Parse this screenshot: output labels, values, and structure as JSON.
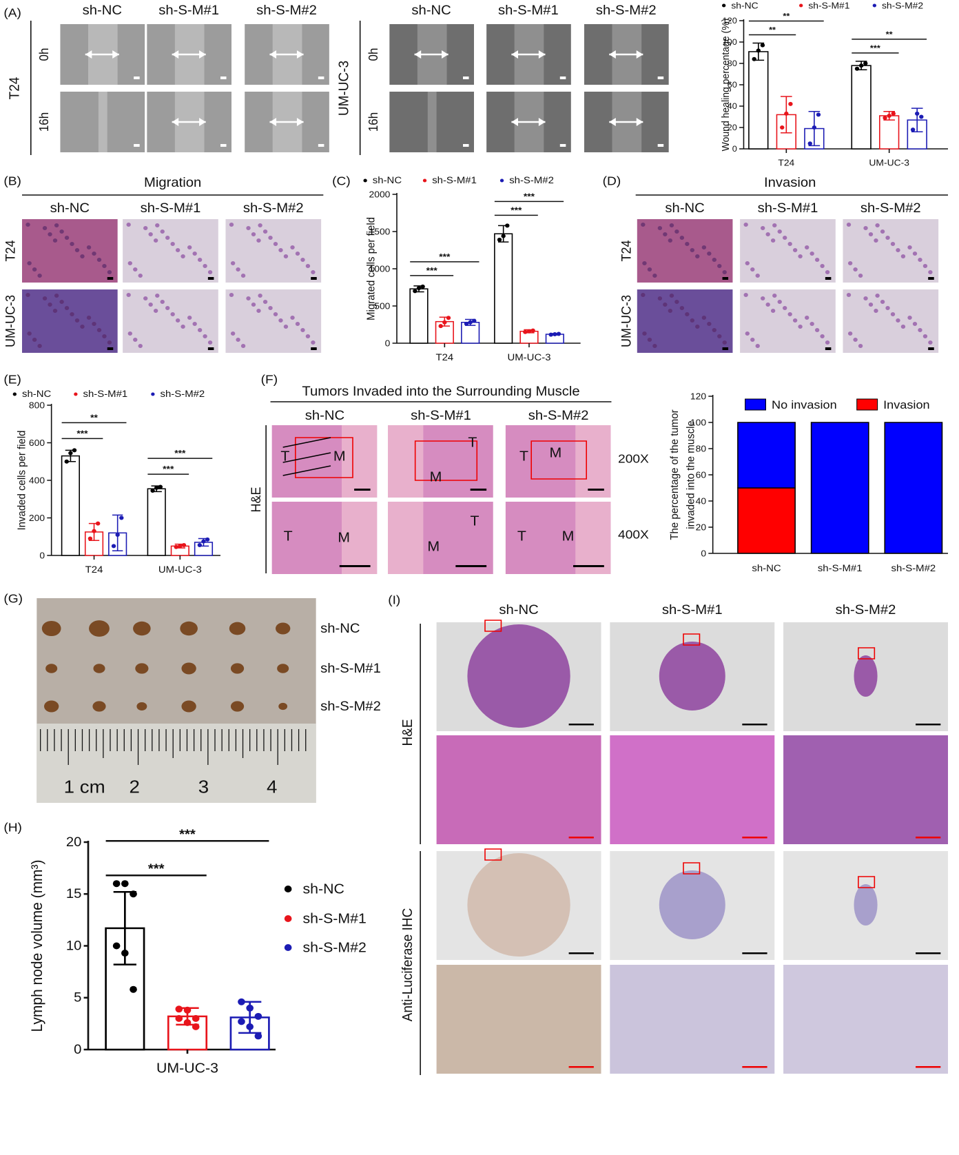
{
  "figure": {
    "panel_labels": [
      "(A)",
      "(B)",
      "(C)",
      "(D)",
      "(E)",
      "(F)",
      "(G)",
      "(H)",
      "(I)"
    ],
    "wound": [
      {
        "cell_line": "T24",
        "columns": [
          "sh-NC",
          "sh-S-M#1",
          "sh-S-M#2"
        ],
        "times": [
          "0h",
          "16h"
        ]
      },
      {
        "cell_line": "UM-UC-3",
        "columns": [
          "sh-NC",
          "sh-S-M#1",
          "sh-S-M#2"
        ],
        "times": [
          "0h",
          "16h"
        ]
      }
    ],
    "migration": {
      "title": "Migration",
      "columns": [
        "sh-NC",
        "sh-S-M#1",
        "sh-S-M#2"
      ],
      "rows": [
        "T24",
        "UM-UC-3"
      ]
    },
    "invasion": {
      "title": "Invasion",
      "columns": [
        "sh-NC",
        "sh-S-M#1",
        "sh-S-M#2"
      ],
      "rows": [
        "T24",
        "UM-UC-3"
      ]
    },
    "muscle": {
      "title": "Tumors Invaded into the Surrounding Muscle",
      "columns": [
        "sh-NC",
        "sh-S-M#1",
        "sh-S-M#2"
      ],
      "stain": "H&E",
      "magnifications": [
        "200X",
        "400X"
      ],
      "markers": [
        [
          [
            "T",
            "M"
          ],
          [
            "T",
            "M"
          ],
          [
            "T",
            "M"
          ]
        ],
        [
          [
            "T",
            "M"
          ],
          [
            "T",
            "M"
          ],
          [
            "T",
            "M"
          ]
        ]
      ]
    },
    "nodes_photo": {
      "rows": [
        "sh-NC",
        "sh-S-M#1",
        "sh-S-M#2"
      ],
      "ruler": [
        "1 cm",
        "2",
        "3",
        "4"
      ]
    },
    "histology": {
      "columns": [
        "sh-NC",
        "sh-S-M#1",
        "sh-S-M#2"
      ],
      "rows": [
        "H&E",
        "Anti-Luciferase IHC"
      ]
    }
  },
  "chart_data": [
    {
      "type": "bar",
      "y_label": "Wound healing percentage (%)",
      "categories": [
        "T24",
        "UM-UC-3"
      ],
      "series": [
        {
          "name": "sh-NC",
          "color": "#000000",
          "values": [
            91,
            78
          ],
          "errors": [
            8,
            4
          ],
          "points": [
            [
              84,
              92,
              97
            ],
            [
              75,
              78,
              80
            ]
          ]
        },
        {
          "name": "sh-S-M#1",
          "color": "#e8141b",
          "values": [
            32,
            31
          ],
          "errors": [
            17,
            4
          ],
          "points": [
            [
              20,
              33,
              42
            ],
            [
              29,
              31,
              33
            ]
          ]
        },
        {
          "name": "sh-S-M#2",
          "color": "#1c1cb4",
          "values": [
            19,
            27
          ],
          "errors": [
            16,
            11
          ],
          "points": [
            [
              5,
              20,
              32
            ],
            [
              18,
              33,
              30
            ]
          ]
        }
      ],
      "ylim": [
        0,
        120
      ],
      "yticks": [
        0,
        20,
        40,
        60,
        80,
        100,
        120
      ],
      "legend": "top",
      "significance": [
        [
          "**",
          "**"
        ],
        [
          "***",
          "**"
        ]
      ]
    },
    {
      "type": "bar",
      "y_label": "Migrated cells per field",
      "categories": [
        "T24",
        "UM-UC-3"
      ],
      "series": [
        {
          "name": "sh-NC",
          "color": "#000000",
          "values": [
            730,
            1470
          ],
          "errors": [
            40,
            110
          ],
          "points": [
            [
              700,
              740,
              760
            ],
            [
              1390,
              1440,
              1580
            ]
          ]
        },
        {
          "name": "sh-S-M#1",
          "color": "#e8141b",
          "values": [
            290,
            160
          ],
          "errors": [
            60,
            20
          ],
          "points": [
            [
              230,
              280,
              340
            ],
            [
              150,
              160,
              170
            ]
          ]
        },
        {
          "name": "sh-S-M#2",
          "color": "#1c1cb4",
          "values": [
            280,
            120
          ],
          "errors": [
            40,
            10
          ],
          "points": [
            [
              260,
              280,
              300
            ],
            [
              115,
              120,
              125
            ]
          ]
        }
      ],
      "ylim": [
        0,
        2000
      ],
      "yticks": [
        0,
        500,
        1000,
        1500,
        2000
      ],
      "legend": "top",
      "significance": [
        [
          "***",
          "***"
        ],
        [
          "***",
          "***"
        ]
      ]
    },
    {
      "type": "bar",
      "y_label": "Invaded cells per field",
      "categories": [
        "T24",
        "UM-UC-3"
      ],
      "series": [
        {
          "name": "sh-NC",
          "color": "#000000",
          "values": [
            530,
            355
          ],
          "errors": [
            30,
            15
          ],
          "points": [
            [
              500,
              545,
              560
            ],
            [
              345,
              360,
              365
            ]
          ]
        },
        {
          "name": "sh-S-M#1",
          "color": "#e8141b",
          "values": [
            125,
            50
          ],
          "errors": [
            45,
            10
          ],
          "points": [
            [
              90,
              130,
              170
            ],
            [
              45,
              50,
              55
            ]
          ]
        },
        {
          "name": "sh-S-M#2",
          "color": "#1c1cb4",
          "values": [
            120,
            70
          ],
          "errors": [
            95,
            20
          ],
          "points": [
            [
              50,
              110,
              200
            ],
            [
              55,
              75,
              85
            ]
          ]
        }
      ],
      "ylim": [
        0,
        800
      ],
      "yticks": [
        0,
        200,
        400,
        600,
        800
      ],
      "legend": "top",
      "significance": [
        [
          "***",
          "**"
        ],
        [
          "***",
          "***"
        ]
      ]
    },
    {
      "type": "stacked_bar",
      "y_label": [
        "The percentage of the tumor",
        "invaded into the muscle"
      ],
      "categories": [
        "sh-NC",
        "sh-S-M#1",
        "sh-S-M#2"
      ],
      "series": [
        {
          "name": "No invasion",
          "color": "#0000ff",
          "values": [
            50,
            100,
            100
          ]
        },
        {
          "name": "Invasion",
          "color": "#ff0000",
          "values": [
            50,
            0,
            0
          ]
        }
      ],
      "ylim": [
        0,
        120
      ],
      "yticks": [
        0,
        20,
        40,
        60,
        80,
        100,
        120
      ],
      "legend": "top"
    },
    {
      "type": "bar",
      "y_label": "Lymph node volume (mm³)",
      "categories": [
        "UM-UC-3"
      ],
      "series": [
        {
          "name": "sh-NC",
          "color": "#000000",
          "values": [
            11.7
          ],
          "errors": [
            3.5
          ],
          "points": [
            [
              16,
              16,
              15,
              10,
              9.3,
              5.8
            ]
          ]
        },
        {
          "name": "sh-S-M#1",
          "color": "#e8141b",
          "values": [
            3.2
          ],
          "errors": [
            0.8
          ],
          "points": [
            [
              3.9,
              3.8,
              3.0,
              3.0,
              2.6,
              2.2
            ]
          ]
        },
        {
          "name": "sh-S-M#2",
          "color": "#1c1cb4",
          "values": [
            3.1
          ],
          "errors": [
            1.5
          ],
          "points": [
            [
              4.6,
              4.0,
              3.2,
              2.7,
              2.2,
              1.3
            ]
          ]
        }
      ],
      "ylim": [
        0,
        20
      ],
      "yticks": [
        0,
        5,
        10,
        15,
        20
      ],
      "legend": "right",
      "significance": [
        [
          "***",
          "***"
        ]
      ]
    }
  ]
}
